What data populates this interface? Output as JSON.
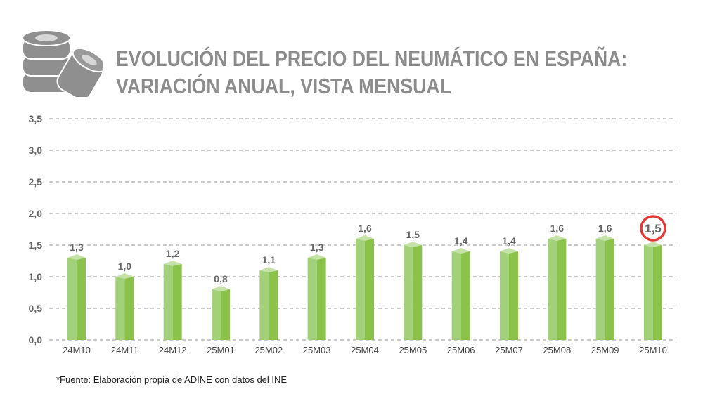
{
  "title_line1": "EVOLUCIÓN DEL PRECIO DEL NEUMÁTICO EN ESPAÑA:",
  "title_line2": "VARIACIÓN ANUAL, VISTA MENSUAL",
  "source": "*Fuente: Elaboración propia de ADINE con datos del INE",
  "logo_icon": "tire-stack-icon",
  "chart_data": {
    "type": "bar",
    "categories": [
      "24M10",
      "24M11",
      "24M12",
      "25M01",
      "25M02",
      "25M03",
      "25M04",
      "25M05",
      "25M06",
      "25M07",
      "25M08",
      "25M09",
      "25M10"
    ],
    "values": [
      1.3,
      1.0,
      1.2,
      0.8,
      1.1,
      1.3,
      1.6,
      1.5,
      1.4,
      1.4,
      1.6,
      1.6,
      1.5
    ],
    "data_labels": [
      "1,3",
      "1,0",
      "1,2",
      "0,8",
      "1,1",
      "1,3",
      "1,6",
      "1,5",
      "1,4",
      "1,4",
      "1,6",
      "1,6",
      "1,5"
    ],
    "yticks": [
      "0,0",
      "0,5",
      "1,0",
      "1,5",
      "2,0",
      "2,5",
      "3,0",
      "3,5"
    ],
    "ylim": [
      0,
      3.5
    ],
    "grid": true,
    "highlight_index": 12,
    "colors": {
      "bar_light": "#a3d179",
      "bar_dark": "#8bc34a",
      "bar_top": "#c5e3a8",
      "highlight_circle": "#e53935",
      "text": "#666666",
      "grid": "#999999"
    }
  }
}
